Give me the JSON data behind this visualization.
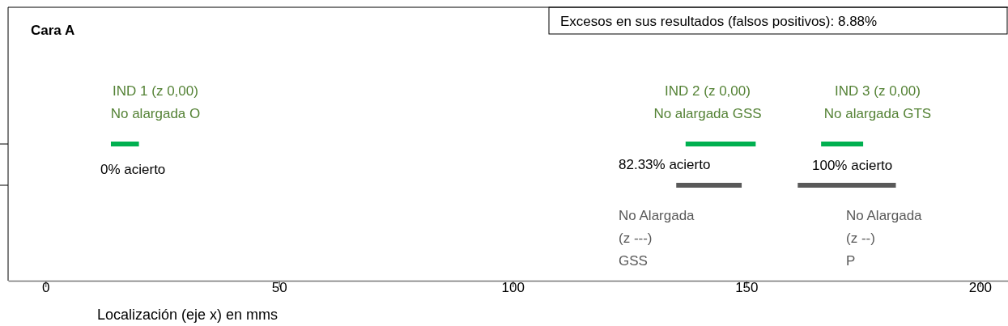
{
  "chart_data": {
    "type": "bar",
    "orientation": "horizontal",
    "title": "Cara A",
    "xlabel": "Localización (eje x) en mms",
    "categories": [
      null,
      null
    ],
    "series": [
      {
        "color": "#00b050",
        "values": [
          6,
          null
        ],
        "base": [
          14,
          null
        ]
      },
      {
        "color": "#00b050",
        "values": [
          15,
          null
        ],
        "base": [
          137,
          null
        ]
      },
      {
        "color": "#00b050",
        "values": [
          9,
          null
        ],
        "base": [
          166,
          null
        ]
      },
      {
        "color": "#595959",
        "values": [
          null,
          14
        ],
        "base": [
          null,
          135
        ]
      },
      {
        "color": "#595959",
        "values": [
          null,
          21
        ],
        "base": [
          null,
          161
        ]
      }
    ],
    "xlim": [
      -8,
      206
    ],
    "xticks": [
      0,
      50,
      100,
      150,
      200
    ],
    "tick_labels": "x",
    "annotations": [
      "Excesos en sus resultados (falsos positivos): 8.88%",
      "IND 1 (z 0,00)\nNo alargada O",
      "IND 2 (z 0,00)\nNo alargada GSS",
      "IND 3 (z 0,00)\nNo alargada GTS",
      "0% acierto",
      "82.33% acierto",
      "100% acierto",
      "No Alargada\n(z ---)\nGSS",
      "No Alargada\n(z --)\nP"
    ]
  }
}
